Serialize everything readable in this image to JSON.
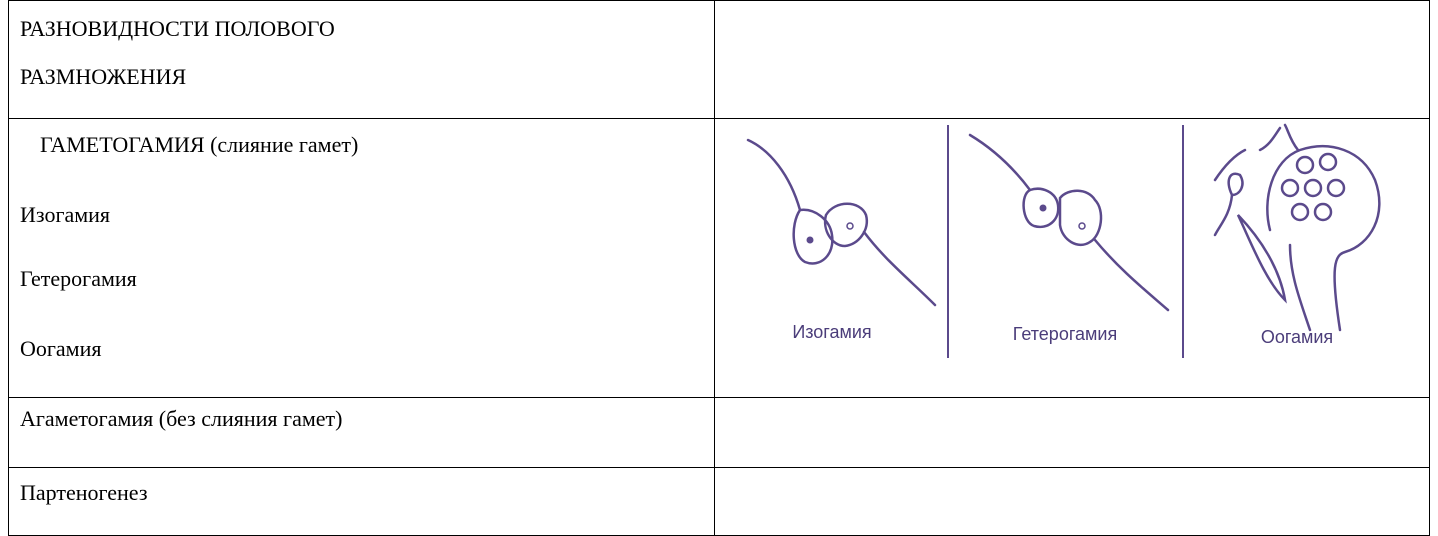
{
  "table": {
    "header": [
      "РАЗНОВИДНОСТИ ПОЛОВОГО",
      "РАЗМНОЖЕНИЯ"
    ],
    "gametogamy": {
      "title": "ГАМЕТОГАМИЯ (слияние гамет)",
      "items": [
        "Изогамия",
        "Гетерогамия",
        "Оогамия"
      ],
      "figure_labels": [
        "Изогамия",
        "Гетерогамия",
        "Оогамия"
      ]
    },
    "rows": [
      "Агаметогамия (без слияния гамет)",
      "Партеногенез"
    ]
  }
}
